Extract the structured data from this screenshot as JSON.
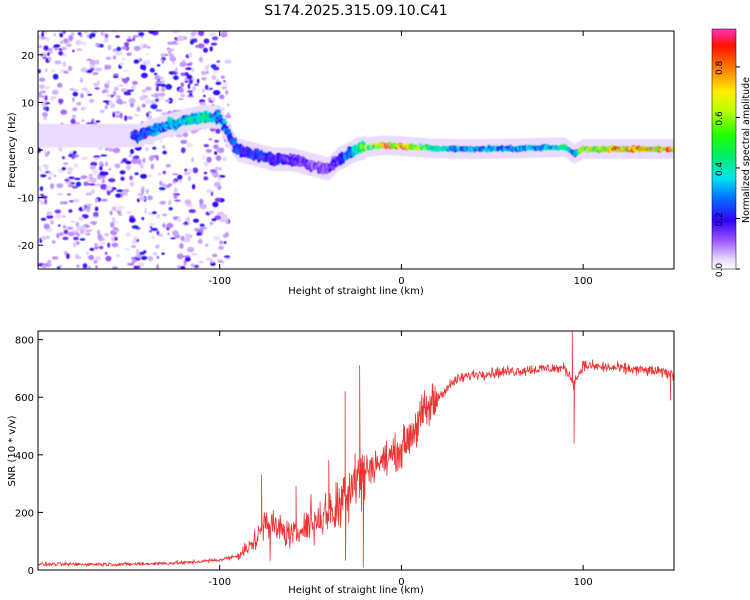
{
  "chart_data": [
    {
      "type": "heatmap",
      "title": "S174.2025.315.09.10.C41",
      "xlabel": "Height of straight line (km)",
      "ylabel": "Frequency (Hz)",
      "xlim": [
        -200,
        150
      ],
      "ylim": [
        -25,
        25
      ],
      "xticks": [
        -100,
        0,
        100
      ],
      "xtick_labels": [
        "-100",
        "0",
        "100"
      ],
      "yticks": [
        20,
        10,
        0,
        -10,
        -20
      ],
      "ytick_labels": [
        "20",
        "10",
        "0",
        "-10",
        "-20"
      ],
      "colorbar": {
        "label": "Normalized spectral amplitude",
        "range": [
          0,
          0.95
        ],
        "ticks": [
          0,
          0.2,
          0.4,
          0.6,
          0.8
        ],
        "tick_labels": [
          "0.0",
          "0.2",
          "0.4",
          "0.6",
          "0.8"
        ]
      },
      "ridge": {
        "x": [
          -145,
          -130,
          -120,
          -110,
          -105,
          -100,
          -95,
          -90,
          -80,
          -70,
          -60,
          -50,
          -40,
          -35,
          -30,
          -25,
          -20,
          -10,
          0,
          20,
          40,
          60,
          80,
          90,
          95,
          100,
          120,
          150
        ],
        "y": [
          3,
          5,
          6,
          7,
          7,
          7,
          3,
          0,
          -1,
          -2,
          -2,
          -3,
          -4,
          -2,
          -1,
          0,
          0.5,
          1,
          0.8,
          0.3,
          0.2,
          0.3,
          0.5,
          0.6,
          -0.8,
          0.2,
          0.2,
          0.2
        ],
        "amp": [
          0.25,
          0.35,
          0.4,
          0.45,
          0.4,
          0.35,
          0.3,
          0.25,
          0.25,
          0.2,
          0.2,
          0.15,
          0.15,
          0.2,
          0.3,
          0.4,
          0.6,
          0.85,
          0.9,
          0.4,
          0.35,
          0.35,
          0.4,
          0.45,
          0.3,
          0.7,
          0.8,
          0.85
        ]
      },
      "noise_region_x": [
        -200,
        -95
      ]
    },
    {
      "type": "line",
      "title": "",
      "xlabel": "Height of straight line (km)",
      "ylabel": "SNR (10 * v/v)",
      "xlim": [
        -200,
        150
      ],
      "ylim": [
        0,
        830
      ],
      "xticks": [
        -100,
        0,
        100
      ],
      "xtick_labels": [
        "-100",
        "0",
        "100"
      ],
      "yticks": [
        0,
        200,
        400,
        600,
        800
      ],
      "ytick_labels": [
        "0",
        "200",
        "400",
        "600",
        "800"
      ],
      "color": "#ee3333",
      "envelope": {
        "x": [
          -200,
          -150,
          -120,
          -100,
          -90,
          -80,
          -75,
          -70,
          -60,
          -50,
          -40,
          -30,
          -25,
          -20,
          -10,
          0,
          10,
          20,
          30,
          40,
          60,
          80,
          90,
          95,
          100,
          120,
          140,
          150
        ],
        "y": [
          20,
          20,
          25,
          35,
          50,
          100,
          180,
          150,
          120,
          160,
          200,
          280,
          330,
          350,
          380,
          420,
          520,
          600,
          660,
          680,
          690,
          700,
          700,
          650,
          710,
          700,
          690,
          680
        ]
      },
      "spikes": [
        {
          "x": -77,
          "y": 330
        },
        {
          "x": -58,
          "y": 290
        },
        {
          "x": -40,
          "y": 380
        },
        {
          "x": -31,
          "y": 620
        },
        {
          "x": -23,
          "y": 710
        },
        {
          "x": -21,
          "y": 10
        },
        {
          "x": 95,
          "y": 440
        },
        {
          "x": 94,
          "y": 830
        },
        {
          "x": 148,
          "y": 590
        }
      ]
    }
  ]
}
